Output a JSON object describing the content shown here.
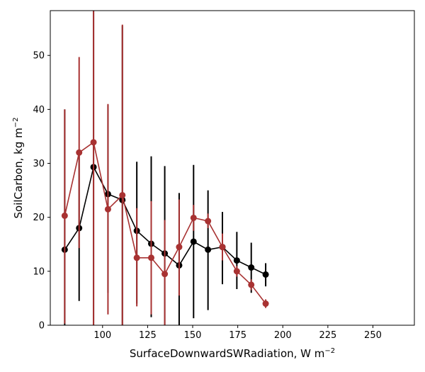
{
  "chart_data": {
    "type": "line",
    "xlabel": "SurfaceDownwardSWRadiation,  W m",
    "xlabel_sup": "−2",
    "ylabel": "SoilCarbon,  kg m",
    "ylabel_sup": "−2",
    "xlim": [
      71,
      273
    ],
    "ylim": [
      0,
      58.3
    ],
    "xticks": [
      100,
      125,
      150,
      175,
      200,
      225,
      250
    ],
    "xtick_labels": [
      "100",
      "125",
      "150",
      "175",
      "200",
      "225",
      "250"
    ],
    "yticks": [
      0,
      10,
      20,
      30,
      40,
      50
    ],
    "ytick_labels": [
      "0",
      "10",
      "20",
      "30",
      "40",
      "50"
    ],
    "grid": false,
    "series": [
      {
        "color": "#000000",
        "points": [
          {
            "x": 79,
            "y": 14.0,
            "lo": 0,
            "hi": 40.0
          },
          {
            "x": 87,
            "y": 18.0,
            "lo": 4.5,
            "hi": 31.5
          },
          {
            "x": 95,
            "y": 29.3,
            "lo": 0,
            "hi": 58.3
          },
          {
            "x": 103,
            "y": 24.3,
            "lo": 6.0,
            "hi": 40.8
          },
          {
            "x": 111,
            "y": 23.2,
            "lo": 0,
            "hi": 55.5
          },
          {
            "x": 119,
            "y": 17.5,
            "lo": 4.0,
            "hi": 30.3
          },
          {
            "x": 127,
            "y": 15.1,
            "lo": 1.5,
            "hi": 31.3
          },
          {
            "x": 134.5,
            "y": 13.3,
            "lo": 0,
            "hi": 29.5
          },
          {
            "x": 142.5,
            "y": 11.1,
            "lo": 0,
            "hi": 24.5
          },
          {
            "x": 150.5,
            "y": 15.5,
            "lo": 1.3,
            "hi": 29.7
          },
          {
            "x": 158.5,
            "y": 14.0,
            "lo": 2.8,
            "hi": 25.0
          },
          {
            "x": 166.5,
            "y": 14.5,
            "lo": 7.6,
            "hi": 21.0
          },
          {
            "x": 174.5,
            "y": 12.0,
            "lo": 6.7,
            "hi": 17.3
          },
          {
            "x": 182.5,
            "y": 10.7,
            "lo": 6.0,
            "hi": 15.3
          },
          {
            "x": 190.5,
            "y": 9.4,
            "lo": 7.2,
            "hi": 11.5
          }
        ]
      },
      {
        "color": "#a83232",
        "points": [
          {
            "x": 79,
            "y": 20.3,
            "lo": 0.3,
            "hi": 40.0
          },
          {
            "x": 87,
            "y": 32.0,
            "lo": 14.3,
            "hi": 49.7
          },
          {
            "x": 95,
            "y": 33.9,
            "lo": 0,
            "hi": 58.3
          },
          {
            "x": 103,
            "y": 21.5,
            "lo": 2.0,
            "hi": 41.0
          },
          {
            "x": 111,
            "y": 24.1,
            "lo": 0,
            "hi": 55.7
          },
          {
            "x": 119,
            "y": 12.5,
            "lo": 3.5,
            "hi": 21.7
          },
          {
            "x": 127,
            "y": 12.5,
            "lo": 2.0,
            "hi": 23.0
          },
          {
            "x": 134.5,
            "y": 9.5,
            "lo": 0,
            "hi": 19.5
          },
          {
            "x": 142.5,
            "y": 14.5,
            "lo": 5.5,
            "hi": 23.3
          },
          {
            "x": 150.5,
            "y": 19.9,
            "lo": 17.5,
            "hi": 22.3
          },
          {
            "x": 158.5,
            "y": 19.3,
            "lo": 18.0,
            "hi": 20.7
          },
          {
            "x": 166.5,
            "y": 14.5,
            "lo": 12.0,
            "hi": 17.0
          },
          {
            "x": 174.5,
            "y": 10.0,
            "lo": 9.0,
            "hi": 11.0
          },
          {
            "x": 182.5,
            "y": 7.5,
            "lo": 6.5,
            "hi": 8.5
          },
          {
            "x": 190.5,
            "y": 4.0,
            "lo": 3.2,
            "hi": 4.8
          }
        ]
      }
    ]
  }
}
